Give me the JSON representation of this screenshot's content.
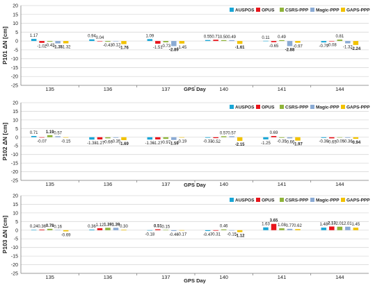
{
  "legend": [
    "AUSPOS",
    "OPUS",
    "CSRS-PPP",
    "Magic-PPP",
    "GAPS-PPP"
  ],
  "colors": {
    "AUSPOS": "#1aa6d6",
    "OPUS": "#e8141b",
    "CSRS-PPP": "#8fb43a",
    "Magic-PPP": "#8aaad4",
    "GAPS-PPP": "#f2c200",
    "grid": "#d9d9d9",
    "axis": "#7f7f7f",
    "text": "#222222"
  },
  "chart_data": [
    {
      "type": "bar",
      "ylabel": "P101 ΔN [cm]",
      "xlabel": "GPS Day",
      "ylim": [
        -25,
        20
      ],
      "yticks": [
        -25,
        -20,
        -15,
        -10,
        -5,
        0,
        5,
        10,
        15,
        20
      ],
      "grid": true,
      "legend_position": "top-right",
      "categories": [
        "135",
        "136",
        "137",
        "140",
        "141",
        "144"
      ],
      "series": [
        {
          "name": "AUSPOS",
          "values": [
            1.17,
            0.94,
            1.09,
            0.55,
            0.11,
            -0.79
          ]
        },
        {
          "name": "OPUS",
          "values": [
            -1.02,
            0.04,
            -1.51,
            0.71,
            -0.65,
            -0.08
          ]
        },
        {
          "name": "CSRS-PPP",
          "values": [
            -0.43,
            -0.43,
            -0.73,
            0.5,
            0.49,
            0.81
          ]
        },
        {
          "name": "Magic-PPP",
          "values": [
            -1.35,
            -0.12,
            -2.89,
            0.49,
            -2.88,
            -1.32
          ]
        },
        {
          "name": "GAPS-PPP",
          "values": [
            -1.32,
            -1.76,
            -1.45,
            -1.61,
            -0.97,
            -2.24
          ]
        }
      ],
      "bold": [
        [
          3,
          0
        ],
        [
          4,
          1
        ],
        [
          3,
          2
        ],
        [
          4,
          3
        ],
        [
          3,
          4
        ],
        [
          4,
          5
        ]
      ]
    },
    {
      "type": "bar",
      "ylabel": "P102 ΔN [cm]",
      "xlabel": "GPS Day",
      "ylim": [
        -25,
        20
      ],
      "yticks": [
        -25,
        -20,
        -15,
        -10,
        -5,
        0,
        5,
        10,
        15,
        20
      ],
      "grid": true,
      "legend_position": "top-right",
      "categories": [
        "135",
        "136",
        "137",
        "140",
        "141",
        "144"
      ],
      "series": [
        {
          "name": "AUSPOS",
          "values": [
            0.71,
            -1.38,
            -1.36,
            -0.33,
            -1.25,
            -0.39
          ]
        },
        {
          "name": "OPUS",
          "values": [
            -0.07,
            -1.27,
            -1.27,
            -0.52,
            0.69,
            -0.65
          ]
        },
        {
          "name": "CSRS-PPP",
          "values": [
            1.19,
            -0.66,
            -0.97,
            0.57,
            -0.35,
            -0.05
          ]
        },
        {
          "name": "Magic-PPP",
          "values": [
            0.57,
            -0.35,
            -1.59,
            0.57,
            -0.66,
            -0.36
          ]
        },
        {
          "name": "GAPS-PPP",
          "values": [
            -0.15,
            -1.69,
            -0.19,
            -2.15,
            -1.97,
            -0.94
          ]
        }
      ],
      "bold": [
        [
          2,
          0
        ],
        [
          4,
          1
        ],
        [
          3,
          2
        ],
        [
          4,
          3
        ],
        [
          4,
          4
        ],
        [
          4,
          5
        ]
      ]
    },
    {
      "type": "bar",
      "ylabel": "P103 ΔN [cm]",
      "xlabel": "GPS Day",
      "ylim": [
        -25,
        20
      ],
      "yticks": [
        -25,
        -20,
        -15,
        -10,
        -5,
        0,
        5,
        10,
        15,
        20
      ],
      "grid": true,
      "legend_position": "top-right",
      "categories": [
        "135",
        "136",
        "137",
        "140",
        "141",
        "144"
      ],
      "series": [
        {
          "name": "AUSPOS",
          "values": [
            0.24,
            0.36,
            -0.18,
            -0.47,
            1.63,
            1.48
          ]
        },
        {
          "name": "OPUS",
          "values": [
            0.36,
            1.12,
            0.51,
            -0.31,
            3.65,
            2.13
          ]
        },
        {
          "name": "CSRS-PPP",
          "values": [
            0.78,
            1.39,
            0.15,
            0.46,
            1.08,
            2.01
          ]
        },
        {
          "name": "Magic-PPP",
          "values": [
            0.16,
            1.39,
            -0.46,
            -0.15,
            0.77,
            2.01
          ]
        },
        {
          "name": "GAPS-PPP",
          "values": [
            -0.69,
            0.3,
            -0.17,
            -1.12,
            0.62,
            1.45
          ]
        }
      ],
      "bold": [
        [
          2,
          0
        ],
        [
          2,
          1
        ],
        [
          3,
          1
        ],
        [
          1,
          2
        ],
        [
          4,
          3
        ],
        [
          1,
          4
        ],
        [
          1,
          5
        ]
      ]
    }
  ]
}
